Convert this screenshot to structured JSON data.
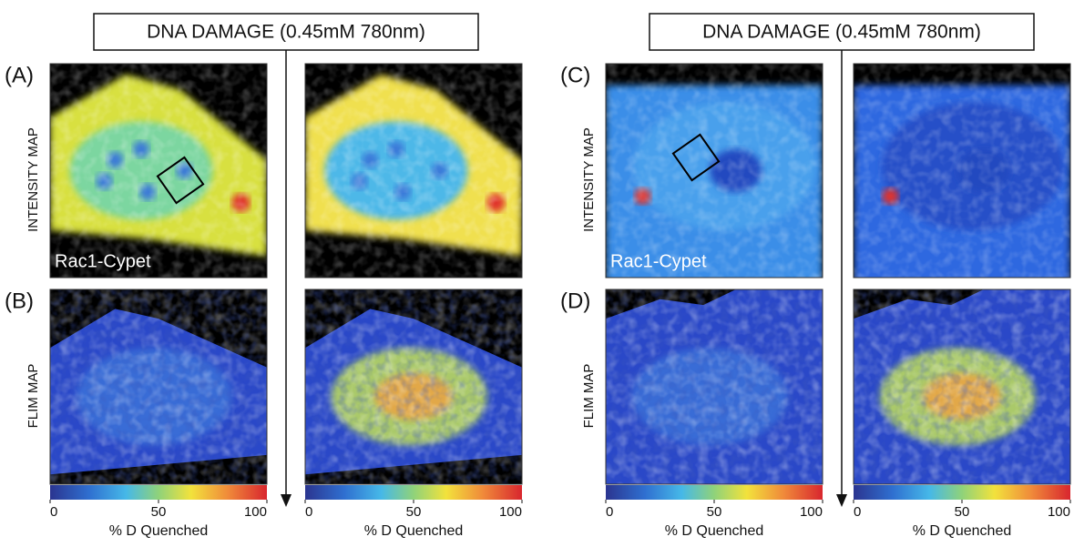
{
  "figures": [
    {
      "header": "DNA DAMAGE (0.45mM 780nm)",
      "rows": [
        {
          "label": "(A)",
          "side_label": "INTENSITY MAP",
          "inset_label": "Rac1-Cypet"
        },
        {
          "label": "(B)",
          "side_label": "FLIM MAP"
        }
      ],
      "colorbars": [
        {
          "lim": [
            0,
            100
          ],
          "ticks": [
            0,
            50,
            100
          ],
          "title": "% D Quenched"
        },
        {
          "lim": [
            0,
            100
          ],
          "ticks": [
            0,
            50,
            100
          ],
          "title": "% D Quenched"
        }
      ]
    },
    {
      "header": "DNA DAMAGE (0.45mM 780nm)",
      "rows": [
        {
          "label": "(C)",
          "side_label": "INTENSITY MAP",
          "inset_label": "Rac1-Cypet"
        },
        {
          "label": "(D)",
          "side_label": "FLIM MAP"
        }
      ],
      "colorbars": [
        {
          "lim": [
            0,
            100
          ],
          "ticks": [
            0,
            50,
            100
          ],
          "title": "% D Quenched"
        },
        {
          "lim": [
            0,
            100
          ],
          "ticks": [
            0,
            50,
            100
          ],
          "title": "% D Quenched"
        }
      ]
    }
  ]
}
